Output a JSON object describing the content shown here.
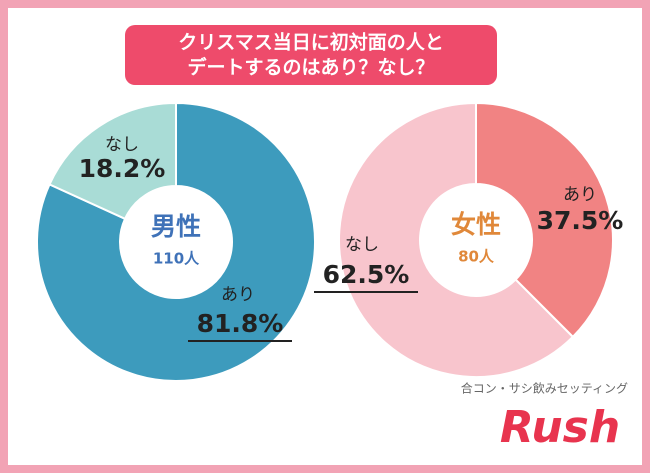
{
  "title": [
    "クリスマス当日に初対面の人と",
    "デートするのはあり？なし？"
  ],
  "chart_data": [
    {
      "type": "pie",
      "center_label": "男性",
      "center_sublabel": "110人",
      "categories": [
        "あり",
        "なし"
      ],
      "values": [
        81.8,
        18.2
      ],
      "value_labels": [
        "81.8%",
        "18.2%"
      ],
      "colors": [
        "#3d9bbd",
        "#a9dcd6"
      ],
      "center_color": "#3f72b8"
    },
    {
      "type": "pie",
      "center_label": "女性",
      "center_sublabel": "80人",
      "categories": [
        "あり",
        "なし"
      ],
      "values": [
        37.5,
        62.5
      ],
      "value_labels": [
        "37.5%",
        "62.5%"
      ],
      "colors": [
        "#f18383",
        "#f8c5cd"
      ],
      "center_color": "#e0883a"
    }
  ],
  "footer": {
    "tagline": "合コン・サシ飲みセッティング",
    "brand": "Rush"
  }
}
